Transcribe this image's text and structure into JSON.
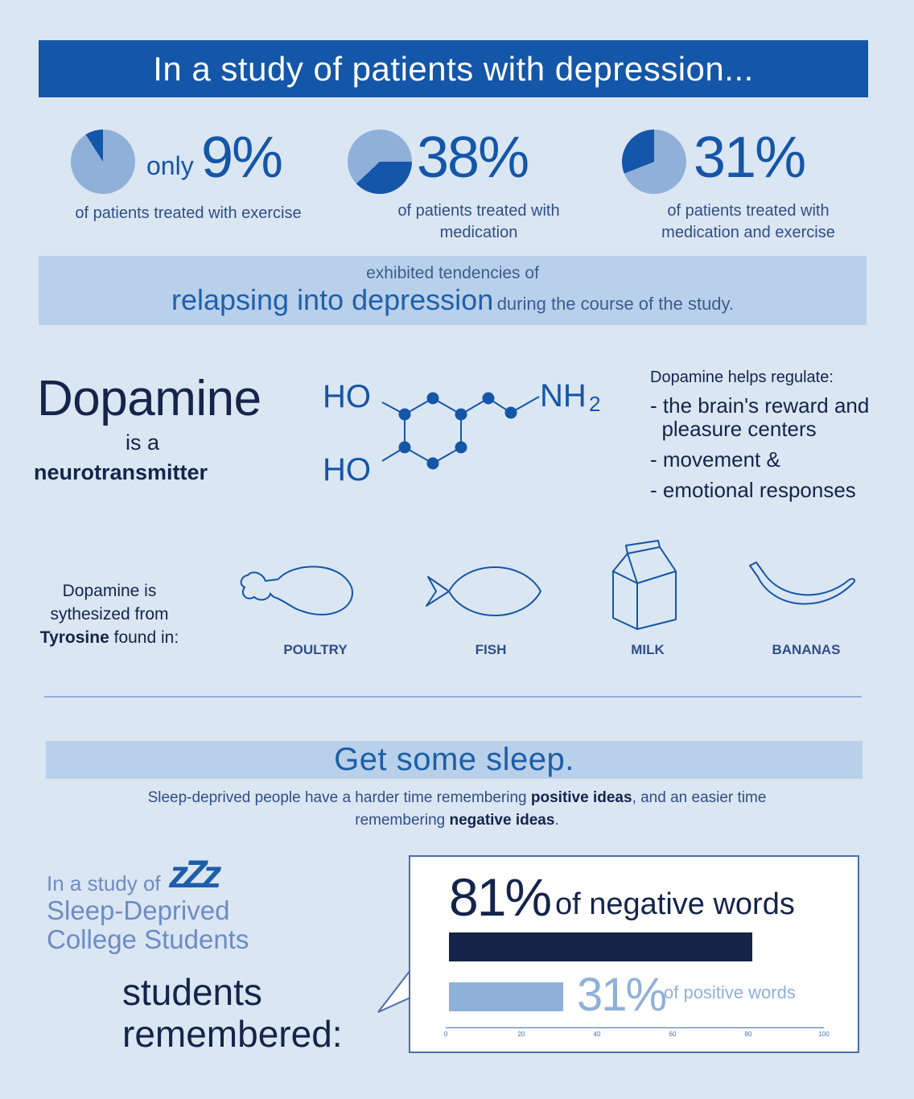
{
  "header": {
    "title": "In a study of patients with depression..."
  },
  "stats": [
    {
      "prefix": "only",
      "value": "9%",
      "fraction": 0.09,
      "description": "of patients treated with exercise",
      "pie_icon": "pie-chart-icon"
    },
    {
      "prefix": "",
      "value": "38%",
      "fraction": 0.38,
      "description": "of patients treated with medication",
      "pie_icon": "pie-chart-icon"
    },
    {
      "prefix": "",
      "value": "31%",
      "fraction": 0.31,
      "description": "of patients treated with medication and exercise",
      "pie_icon": "pie-chart-icon"
    }
  ],
  "relapse": {
    "line1": "exhibited tendencies of",
    "big": "relapsing into depression",
    "tail": "during the course of the study."
  },
  "dopamine": {
    "title": "Dopamine",
    "is_a": "is a",
    "neurotransmitter": "neurotransmitter",
    "molecule": {
      "ho_top": "HO",
      "ho_bottom": "HO",
      "nh2": "NH",
      "nh2_sub": "2"
    },
    "regulate_title": "Dopamine helps regulate:",
    "regulate_items": [
      "- the brain's reward and",
      "  pleasure centers",
      "- movement &",
      "- emotional responses"
    ]
  },
  "tyrosine": {
    "line1": "Dopamine is",
    "line2": "sythesized from",
    "bold": "Tyrosine",
    "line3_tail": "found in:",
    "foods": [
      "POULTRY",
      "FISH",
      "MILK",
      "BANANAS"
    ]
  },
  "sleep": {
    "title": "Get some sleep.",
    "desc_part1": "Sleep-deprived people have a harder time remembering ",
    "desc_bold1": "positive ideas",
    "desc_part2": ", and an easier time remembering ",
    "desc_bold2": "negative ideas",
    "desc_part3": ".",
    "study_line1": "In a study of",
    "zzz": "zZz",
    "study_line2": "Sleep-Deprived",
    "study_line3": "College Students",
    "remembered1": "students",
    "remembered2": "remembered:"
  },
  "chart_data": {
    "type": "bar",
    "categories": [
      "negative words",
      "positive words"
    ],
    "values": [
      81,
      31
    ],
    "labels": [
      "81%",
      "31%"
    ],
    "label_texts": [
      "of negative words",
      "of positive words"
    ],
    "xlim": [
      0,
      100
    ],
    "ticks": [
      0,
      20,
      40,
      60,
      80,
      100
    ],
    "colors": [
      "#142348",
      "#8fb0d8"
    ]
  }
}
